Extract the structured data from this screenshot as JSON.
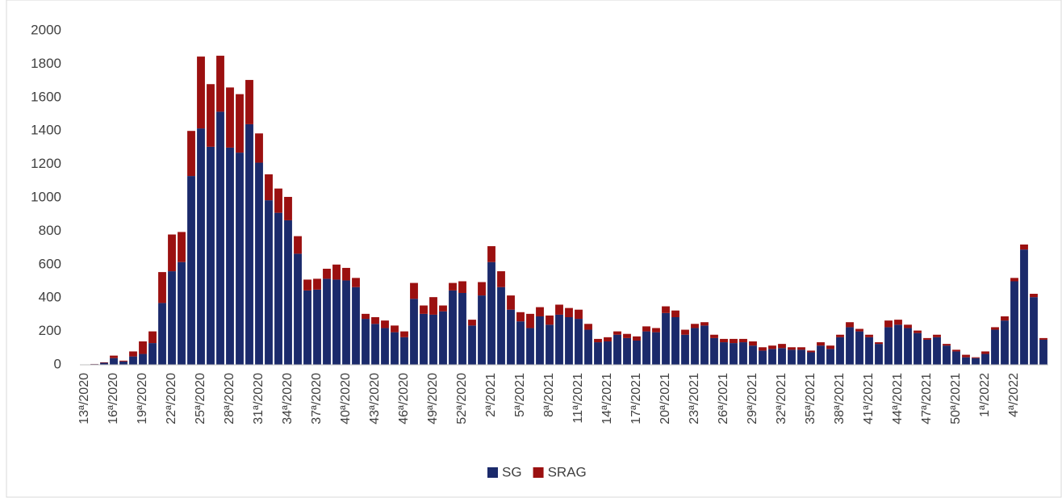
{
  "chart_data": {
    "type": "stacked_bar",
    "categories": [
      "13ª/2020",
      null,
      null,
      "16ª/2020",
      null,
      null,
      "19ª/2020",
      null,
      null,
      "22ª/2020",
      null,
      null,
      "25ª/2020",
      null,
      null,
      "28ª/2020",
      null,
      null,
      "31ª/2020",
      null,
      null,
      "34ª/2020",
      null,
      null,
      "37ª/2020",
      null,
      null,
      "40ª/2020",
      null,
      null,
      "43ª/2020",
      null,
      null,
      "46ª/2020",
      null,
      null,
      "49ª/2020",
      null,
      null,
      "52ª/2020",
      null,
      null,
      "2ª/2021",
      null,
      null,
      "5ª/2021",
      null,
      null,
      "8ª/2021",
      null,
      null,
      "11ª/2021",
      null,
      null,
      "14ª/2021",
      null,
      null,
      "17ª/2021",
      null,
      null,
      "20ª/2021",
      null,
      null,
      "23ª/2021",
      null,
      null,
      "26ª/2021",
      null,
      null,
      "29ª/2021",
      null,
      null,
      "32ª/2021",
      null,
      null,
      "35ª/2021",
      null,
      null,
      "38ª/2021",
      null,
      null,
      "41ª/2021",
      null,
      null,
      "44ª/2021",
      null,
      null,
      "47ª/2021",
      null,
      null,
      "50ª/2021",
      null,
      null,
      "1ª/2022",
      null,
      null,
      "4ª/2022",
      null,
      null,
      null
    ],
    "series": [
      {
        "name": "SG",
        "color": "#1b2a6b",
        "values": [
          2,
          4,
          12,
          40,
          20,
          50,
          65,
          130,
          370,
          560,
          615,
          1130,
          1415,
          1305,
          1515,
          1300,
          1270,
          1440,
          1210,
          985,
          910,
          865,
          665,
          445,
          450,
          515,
          510,
          505,
          465,
          275,
          245,
          220,
          195,
          165,
          395,
          305,
          300,
          320,
          445,
          430,
          235,
          415,
          615,
          465,
          330,
          260,
          220,
          290,
          240,
          300,
          285,
          275,
          210,
          135,
          140,
          180,
          160,
          145,
          200,
          195,
          310,
          285,
          180,
          220,
          235,
          160,
          135,
          130,
          135,
          115,
          85,
          95,
          100,
          90,
          90,
          75,
          115,
          95,
          165,
          225,
          200,
          165,
          125,
          225,
          240,
          220,
          190,
          150,
          165,
          115,
          80,
          45,
          40,
          65,
          210,
          265,
          500,
          690,
          405,
          150
        ]
      },
      {
        "name": "SRAG",
        "color": "#9b1010",
        "values": [
          0,
          1,
          3,
          15,
          5,
          30,
          75,
          70,
          185,
          220,
          180,
          270,
          430,
          375,
          335,
          360,
          350,
          265,
          175,
          155,
          145,
          140,
          105,
          65,
          65,
          60,
          90,
          75,
          55,
          30,
          40,
          45,
          40,
          35,
          95,
          50,
          105,
          35,
          45,
          70,
          35,
          80,
          95,
          95,
          85,
          55,
          85,
          55,
          55,
          60,
          55,
          55,
          35,
          20,
          25,
          20,
          25,
          25,
          30,
          25,
          40,
          40,
          30,
          25,
          20,
          20,
          20,
          25,
          20,
          25,
          20,
          20,
          25,
          15,
          15,
          10,
          20,
          20,
          15,
          30,
          15,
          15,
          10,
          40,
          30,
          20,
          15,
          10,
          15,
          10,
          10,
          15,
          5,
          15,
          15,
          25,
          20,
          30,
          20,
          10
        ]
      }
    ],
    "ylim": [
      0,
      2000
    ],
    "yticks": [
      0,
      200,
      400,
      600,
      800,
      1000,
      1200,
      1400,
      1600,
      1800,
      2000
    ],
    "grid": false,
    "legend": "bottom"
  }
}
